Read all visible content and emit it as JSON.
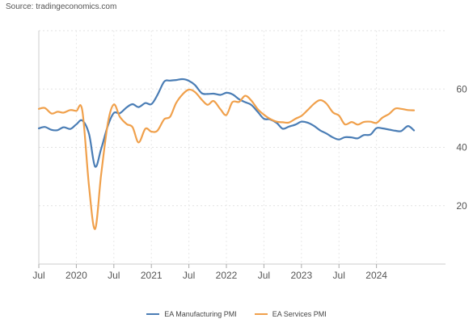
{
  "source": "Source: tradingeconomics.com",
  "chart_data": {
    "type": "line",
    "title": "",
    "xlabel": "",
    "ylabel": "",
    "x_unit": "year",
    "xlim": [
      2019.5,
      2024.92
    ],
    "ylim": [
      0,
      80
    ],
    "y_axis_side": "right",
    "grid": true,
    "legend_position": "bottom-center",
    "x_tick_labels": [
      {
        "label": "Jul",
        "x": 2019.5
      },
      {
        "label": "2020",
        "x": 2020.0
      },
      {
        "label": "Jul",
        "x": 2020.5
      },
      {
        "label": "2021",
        "x": 2021.0
      },
      {
        "label": "Jul",
        "x": 2021.5
      },
      {
        "label": "2022",
        "x": 2022.0
      },
      {
        "label": "Jul",
        "x": 2022.5
      },
      {
        "label": "2023",
        "x": 2023.0
      },
      {
        "label": "Jul",
        "x": 2023.5
      },
      {
        "label": "2024",
        "x": 2024.0
      }
    ],
    "y_ticks": [
      20,
      40,
      60
    ],
    "series": [
      {
        "name": "EA Manufacturing PMI",
        "color": "#4a7db5",
        "points": [
          [
            2019.5,
            46.5
          ],
          [
            2019.58,
            47.0
          ],
          [
            2019.67,
            46.0
          ],
          [
            2019.75,
            45.9
          ],
          [
            2019.83,
            46.9
          ],
          [
            2019.92,
            46.3
          ],
          [
            2020.0,
            47.9
          ],
          [
            2020.08,
            49.2
          ],
          [
            2020.17,
            44.5
          ],
          [
            2020.25,
            33.4
          ],
          [
            2020.33,
            39.4
          ],
          [
            2020.42,
            47.4
          ],
          [
            2020.5,
            51.8
          ],
          [
            2020.58,
            51.7
          ],
          [
            2020.67,
            53.7
          ],
          [
            2020.75,
            54.8
          ],
          [
            2020.83,
            53.8
          ],
          [
            2020.92,
            55.2
          ],
          [
            2021.0,
            54.8
          ],
          [
            2021.08,
            57.9
          ],
          [
            2021.17,
            62.5
          ],
          [
            2021.25,
            62.9
          ],
          [
            2021.33,
            63.1
          ],
          [
            2021.42,
            63.4
          ],
          [
            2021.5,
            62.8
          ],
          [
            2021.58,
            61.4
          ],
          [
            2021.67,
            58.6
          ],
          [
            2021.75,
            58.3
          ],
          [
            2021.83,
            58.4
          ],
          [
            2021.92,
            58.0
          ],
          [
            2022.0,
            58.7
          ],
          [
            2022.08,
            58.2
          ],
          [
            2022.17,
            56.5
          ],
          [
            2022.25,
            55.5
          ],
          [
            2022.33,
            54.6
          ],
          [
            2022.42,
            52.1
          ],
          [
            2022.5,
            49.8
          ],
          [
            2022.58,
            49.6
          ],
          [
            2022.67,
            48.4
          ],
          [
            2022.75,
            46.4
          ],
          [
            2022.83,
            47.1
          ],
          [
            2022.92,
            47.8
          ],
          [
            2023.0,
            48.8
          ],
          [
            2023.08,
            48.5
          ],
          [
            2023.17,
            47.3
          ],
          [
            2023.25,
            45.8
          ],
          [
            2023.33,
            44.8
          ],
          [
            2023.42,
            43.4
          ],
          [
            2023.5,
            42.7
          ],
          [
            2023.58,
            43.5
          ],
          [
            2023.67,
            43.4
          ],
          [
            2023.75,
            43.1
          ],
          [
            2023.83,
            44.2
          ],
          [
            2023.92,
            44.4
          ],
          [
            2024.0,
            46.6
          ],
          [
            2024.08,
            46.5
          ],
          [
            2024.17,
            46.1
          ],
          [
            2024.25,
            45.7
          ],
          [
            2024.33,
            45.6
          ],
          [
            2024.42,
            47.3
          ],
          [
            2024.5,
            45.8
          ]
        ]
      },
      {
        "name": "EA Services PMI",
        "color": "#f0a04b",
        "points": [
          [
            2019.5,
            53.2
          ],
          [
            2019.58,
            53.5
          ],
          [
            2019.67,
            51.6
          ],
          [
            2019.75,
            52.2
          ],
          [
            2019.83,
            51.9
          ],
          [
            2019.92,
            52.8
          ],
          [
            2020.0,
            52.5
          ],
          [
            2020.08,
            52.6
          ],
          [
            2020.17,
            26.4
          ],
          [
            2020.25,
            12.0
          ],
          [
            2020.33,
            30.5
          ],
          [
            2020.42,
            48.3
          ],
          [
            2020.5,
            54.7
          ],
          [
            2020.58,
            50.5
          ],
          [
            2020.67,
            48.0
          ],
          [
            2020.75,
            46.9
          ],
          [
            2020.83,
            41.7
          ],
          [
            2020.92,
            46.4
          ],
          [
            2021.0,
            45.4
          ],
          [
            2021.08,
            45.7
          ],
          [
            2021.17,
            49.6
          ],
          [
            2021.25,
            50.5
          ],
          [
            2021.33,
            55.2
          ],
          [
            2021.42,
            58.3
          ],
          [
            2021.5,
            59.8
          ],
          [
            2021.58,
            59.0
          ],
          [
            2021.67,
            56.4
          ],
          [
            2021.75,
            54.6
          ],
          [
            2021.83,
            55.9
          ],
          [
            2021.92,
            53.1
          ],
          [
            2022.0,
            51.1
          ],
          [
            2022.08,
            55.5
          ],
          [
            2022.17,
            55.6
          ],
          [
            2022.25,
            57.7
          ],
          [
            2022.33,
            56.1
          ],
          [
            2022.42,
            53.0
          ],
          [
            2022.5,
            51.2
          ],
          [
            2022.58,
            49.8
          ],
          [
            2022.67,
            48.8
          ],
          [
            2022.75,
            48.6
          ],
          [
            2022.83,
            48.5
          ],
          [
            2022.92,
            49.8
          ],
          [
            2023.0,
            50.8
          ],
          [
            2023.08,
            52.7
          ],
          [
            2023.17,
            55.0
          ],
          [
            2023.25,
            56.2
          ],
          [
            2023.33,
            55.1
          ],
          [
            2023.42,
            52.0
          ],
          [
            2023.5,
            50.9
          ],
          [
            2023.58,
            47.9
          ],
          [
            2023.67,
            48.7
          ],
          [
            2023.75,
            47.8
          ],
          [
            2023.83,
            48.7
          ],
          [
            2023.92,
            48.8
          ],
          [
            2024.0,
            48.4
          ],
          [
            2024.08,
            50.2
          ],
          [
            2024.17,
            51.5
          ],
          [
            2024.25,
            53.3
          ],
          [
            2024.33,
            53.2
          ],
          [
            2024.42,
            52.8
          ],
          [
            2024.5,
            52.7
          ]
        ]
      }
    ]
  }
}
